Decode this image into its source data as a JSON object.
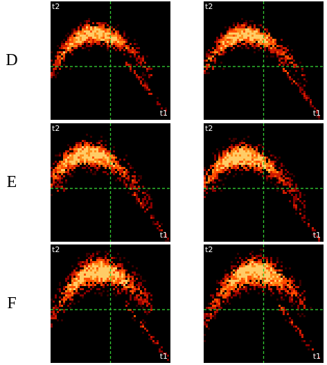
{
  "rows": [
    {
      "label": "D"
    },
    {
      "label": "E"
    },
    {
      "label": "F"
    }
  ],
  "chart_data": {
    "type": "heatmap",
    "layout": "3 rows x 2 columns of density scatter panels",
    "xlabel": "t1",
    "ylabel": "t2",
    "xlim": [
      0,
      1
    ],
    "ylim": [
      0,
      1
    ],
    "crosshair": {
      "x": 0.5,
      "y": 0.45
    },
    "crosshair_color": "#33cc33",
    "colormap": [
      "#3a0000",
      "#8b0000",
      "#cc1a00",
      "#ff4d00",
      "#ff8c1a",
      "#ffcc66"
    ],
    "background": "#000000",
    "panels": [
      {
        "row": "D",
        "col": 1,
        "peak_x": 0.36,
        "peak_y": 0.73,
        "spread": 0.1,
        "tail_end": [
          0.97,
          0.04
        ]
      },
      {
        "row": "D",
        "col": 2,
        "peak_x": 0.34,
        "peak_y": 0.72,
        "spread": 0.1,
        "tail_end": [
          0.97,
          0.03
        ]
      },
      {
        "row": "E",
        "col": 1,
        "peak_x": 0.3,
        "peak_y": 0.74,
        "spread": 0.12,
        "tail_end": [
          0.96,
          0.05
        ]
      },
      {
        "row": "E",
        "col": 2,
        "peak_x": 0.31,
        "peak_y": 0.72,
        "spread": 0.12,
        "tail_end": [
          0.94,
          0.05
        ]
      },
      {
        "row": "F",
        "col": 1,
        "peak_x": 0.4,
        "peak_y": 0.77,
        "spread": 0.14,
        "tail_end": [
          0.97,
          0.05
        ]
      },
      {
        "row": "F",
        "col": 2,
        "peak_x": 0.42,
        "peak_y": 0.77,
        "spread": 0.14,
        "tail_end": [
          0.95,
          0.05
        ]
      }
    ]
  }
}
